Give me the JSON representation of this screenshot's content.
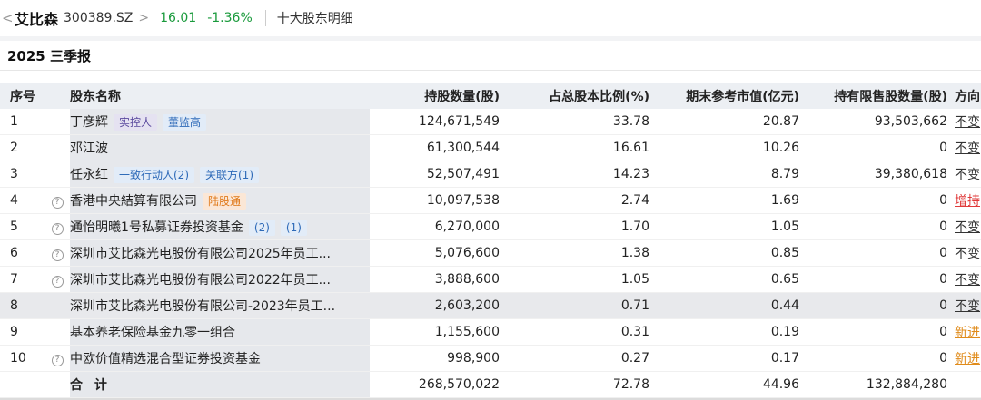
{
  "header": {
    "back_symbol": "<",
    "stock_name": "艾比森",
    "stock_code": "300389.SZ",
    "chevron": ">",
    "price": "16.01",
    "change_pct": "-1.36%",
    "page_title": "十大股东明细",
    "price_color": "#1a9a3c"
  },
  "period": "2025 三季报",
  "table": {
    "columns": {
      "idx": "序号",
      "name": "股东名称",
      "shares": "持股数量(股)",
      "ratio": "占总股本比例(%)",
      "market_value": "期末参考市值(亿元)",
      "restricted": "持有限售股数量(股)",
      "direction": "方向"
    },
    "rows": [
      {
        "idx": "1",
        "name": "丁彦辉",
        "shares": "124,671,549",
        "ratio": "33.78",
        "mv": "20.87",
        "restricted": "93,503,662",
        "direction": "不变"
      },
      {
        "idx": "2",
        "name": "邓江波",
        "shares": "61,300,544",
        "ratio": "16.61",
        "mv": "10.26",
        "restricted": "0",
        "direction": "不变"
      },
      {
        "idx": "3",
        "name": "任永红",
        "shares": "52,507,491",
        "ratio": "14.23",
        "mv": "8.79",
        "restricted": "39,380,618",
        "direction": "不变"
      },
      {
        "idx": "4",
        "name": "香港中央結算有限公司",
        "shares": "10,097,538",
        "ratio": "2.74",
        "mv": "1.69",
        "restricted": "0",
        "direction": "增持"
      },
      {
        "idx": "5",
        "name": "通怡明曦1号私募证券投资基金",
        "shares": "6,270,000",
        "ratio": "1.70",
        "mv": "1.05",
        "restricted": "0",
        "direction": "不变"
      },
      {
        "idx": "6",
        "name": "深圳市艾比森光电股份有限公司2025年员工...",
        "shares": "5,076,600",
        "ratio": "1.38",
        "mv": "0.85",
        "restricted": "0",
        "direction": "不变"
      },
      {
        "idx": "7",
        "name": "深圳市艾比森光电股份有限公司2022年员工...",
        "shares": "3,888,600",
        "ratio": "1.05",
        "mv": "0.65",
        "restricted": "0",
        "direction": "不变"
      },
      {
        "idx": "8",
        "name": "深圳市艾比森光电股份有限公司-2023年员工...",
        "shares": "2,603,200",
        "ratio": "0.71",
        "mv": "0.44",
        "restricted": "0",
        "direction": "不变"
      },
      {
        "idx": "9",
        "name": "基本养老保险基金九零一组合",
        "shares": "1,155,600",
        "ratio": "0.31",
        "mv": "0.19",
        "restricted": "0",
        "direction": "新进"
      },
      {
        "idx": "10",
        "name": "中欧价值精选混合型证券投资基金",
        "shares": "998,900",
        "ratio": "0.27",
        "mv": "0.17",
        "restricted": "0",
        "direction": "新进"
      }
    ],
    "tags": {
      "r1a": "实控人",
      "r1b": "董监高",
      "r3a": "一致行动人(2)",
      "r3b": "关联方(1)",
      "r4a": "陆股通",
      "r5a": "(2)",
      "r5b": "(1)"
    },
    "total": {
      "label": "合 计",
      "shares": "268,570,022",
      "ratio": "72.78",
      "mv": "44.96",
      "restricted": "132,884,280"
    }
  },
  "colors": {
    "up": "#e03a3a",
    "down": "#1a9a3c",
    "new": "#e08b1a"
  },
  "icons": {
    "help": "question-circle-icon",
    "back": "chevron-left-icon",
    "forward": "chevron-right-icon"
  }
}
